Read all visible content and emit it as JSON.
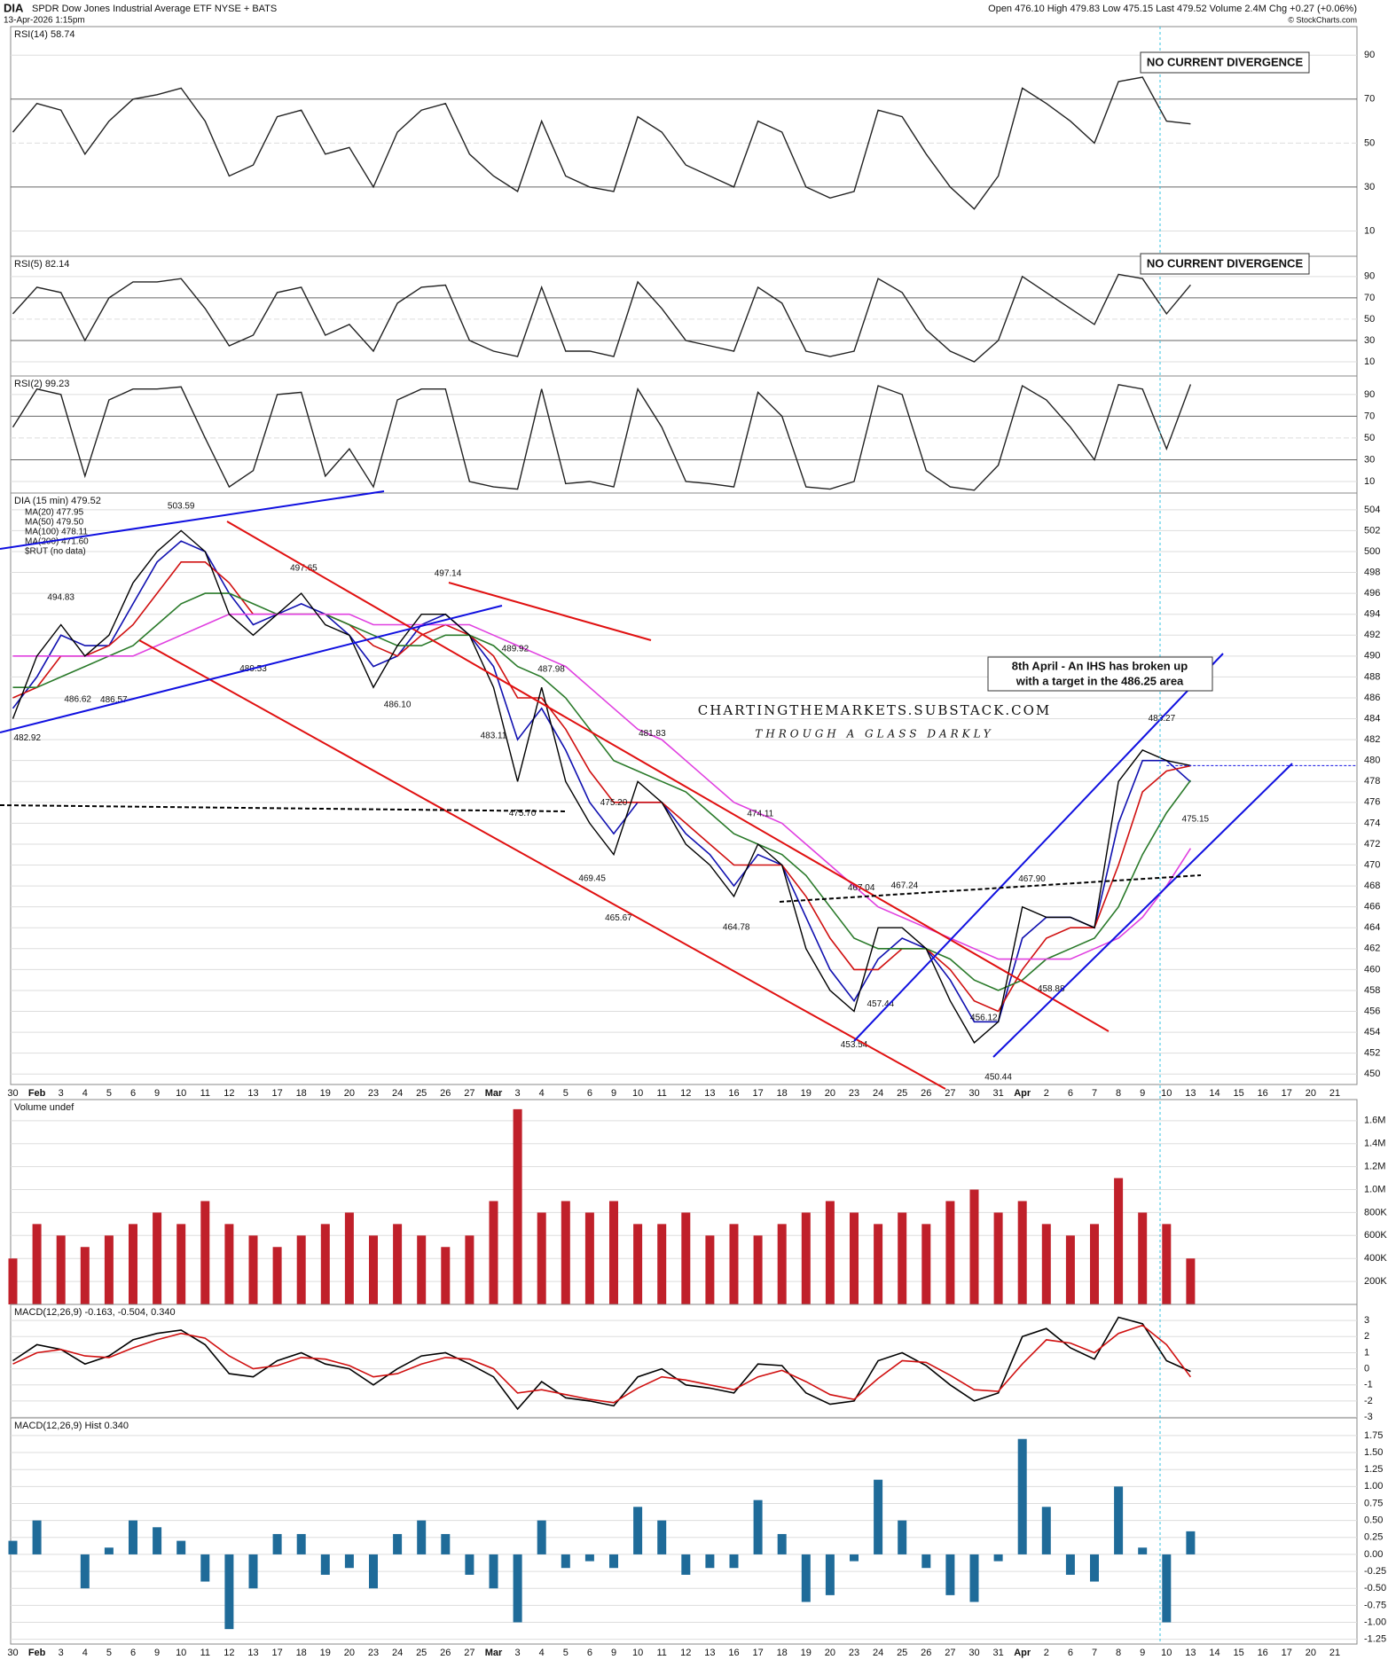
{
  "header": {
    "symbol": "DIA",
    "name": "SPDR Dow Jones Industrial Average ETF NYSE + BATS",
    "date": "13-Apr-2026 1:15pm",
    "quote": "Open 476.10  High 479.83  Low 475.15  Last 479.52  Volume 2.4M  Chg +0.27 (+0.06%)",
    "copyright": "© StockCharts.com"
  },
  "annotations": {
    "divergence_rsi14": "NO CURRENT DIVERGENCE",
    "divergence_rsi5": "NO CURRENT DIVERGENCE",
    "ihs_line1": "8th April - An IHS has broken up",
    "ihs_line2": "with a target in the 486.25 area",
    "watermark": "CHARTINGTHEMARKETS.SUBSTACK.COM",
    "watermark_sub": "THROUGH A GLASS DARKLY"
  },
  "chart_data": [
    {
      "type": "line",
      "title": "RSI(14) 58.74",
      "color": "#222222",
      "ylim": [
        -1.5,
        103
      ],
      "yticks": [
        10,
        30,
        50,
        70,
        90
      ],
      "values": [
        55,
        68,
        65,
        45,
        60,
        70,
        72,
        75,
        60,
        35,
        40,
        62,
        65,
        45,
        48,
        30,
        55,
        65,
        68,
        45,
        35,
        28,
        60,
        35,
        30,
        28,
        62,
        55,
        40,
        35,
        30,
        60,
        55,
        30,
        25,
        28,
        65,
        62,
        45,
        30,
        20,
        35,
        75,
        68,
        60,
        50,
        78,
        80,
        60,
        58.74,
        null,
        null,
        null,
        null,
        null,
        null
      ]
    },
    {
      "type": "line",
      "title": "RSI(5) 82.14",
      "color": "#222222",
      "ylim": [
        -3.3,
        109
      ],
      "yticks": [
        10,
        30,
        50,
        70,
        90
      ],
      "values": [
        55,
        80,
        75,
        30,
        70,
        85,
        85,
        88,
        60,
        25,
        35,
        75,
        80,
        35,
        45,
        20,
        65,
        80,
        82,
        30,
        20,
        15,
        80,
        20,
        20,
        15,
        85,
        60,
        30,
        25,
        20,
        80,
        65,
        20,
        15,
        20,
        88,
        75,
        40,
        20,
        10,
        30,
        90,
        75,
        60,
        45,
        92,
        88,
        55,
        82.14,
        null,
        null,
        null,
        null,
        null,
        null
      ]
    },
    {
      "type": "line",
      "title": "RSI(2) 99.23",
      "color": "#222222",
      "ylim": [
        -0.6,
        107
      ],
      "yticks": [
        10,
        30,
        50,
        70,
        90
      ],
      "values": [
        60,
        95,
        90,
        15,
        85,
        95,
        95,
        97,
        50,
        5,
        20,
        90,
        92,
        15,
        40,
        5,
        85,
        95,
        95,
        10,
        5,
        3,
        95,
        8,
        10,
        5,
        95,
        60,
        10,
        8,
        5,
        92,
        70,
        5,
        3,
        10,
        98,
        90,
        20,
        5,
        2,
        25,
        98,
        85,
        60,
        30,
        99,
        95,
        40,
        99.23,
        null,
        null,
        null,
        null,
        null,
        null
      ]
    },
    {
      "type": "line",
      "title": "DIA (15 min) 479.52",
      "color": "#000000",
      "ylim": [
        449,
        505.6
      ],
      "yticks": [
        450,
        452,
        454,
        456,
        458,
        460,
        462,
        464,
        466,
        468,
        470,
        472,
        474,
        476,
        478,
        480,
        482,
        484,
        486,
        488,
        490,
        492,
        494,
        496,
        498,
        500,
        502,
        504
      ],
      "categories": [
        "30",
        "Feb",
        "3",
        "4",
        "5",
        "6",
        "9",
        "10",
        "11",
        "12",
        "13",
        "17",
        "18",
        "19",
        "20",
        "23",
        "24",
        "25",
        "26",
        "27",
        "Mar",
        "3",
        "4",
        "5",
        "6",
        "9",
        "10",
        "11",
        "12",
        "13",
        "16",
        "17",
        "18",
        "19",
        "20",
        "23",
        "24",
        "25",
        "26",
        "27",
        "30",
        "31",
        "Apr",
        "2",
        "6",
        "7",
        "8",
        "9",
        "10",
        "13",
        "14",
        "15",
        "16",
        "17",
        "20",
        "21"
      ],
      "values": [
        484,
        490,
        493,
        490,
        492,
        497,
        500,
        502,
        500,
        494,
        492,
        494,
        496,
        493,
        492,
        487,
        491,
        494,
        494,
        492,
        487,
        478,
        487,
        478,
        474,
        471,
        478,
        476,
        472,
        470,
        467,
        472,
        470,
        462,
        458,
        456,
        464,
        464,
        462,
        457,
        453,
        455,
        466,
        465,
        465,
        464,
        478,
        481,
        480,
        479.52,
        null,
        null,
        null,
        null,
        null,
        null
      ],
      "series": [
        {
          "name": "MA(20) 477.95",
          "color": "#1010b0",
          "values": [
            485,
            488,
            492,
            491,
            491,
            495,
            499,
            501,
            500,
            496,
            493,
            494,
            495,
            494,
            492,
            489,
            490,
            493,
            494,
            492,
            489,
            482,
            485,
            481,
            476,
            473,
            476,
            476,
            473,
            471,
            468,
            471,
            470,
            465,
            460,
            457,
            461,
            463,
            462,
            459,
            455,
            455,
            463,
            465,
            465,
            464,
            474,
            480,
            480,
            477.95,
            null,
            null,
            null,
            null,
            null,
            null
          ]
        },
        {
          "name": "MA(50) 479.50",
          "color": "#d01010",
          "values": [
            486,
            487,
            490,
            490,
            491,
            493,
            496,
            499,
            499,
            497,
            494,
            494,
            494,
            494,
            493,
            491,
            490,
            492,
            493,
            492,
            490,
            486,
            486,
            483,
            479,
            476,
            476,
            476,
            474,
            472,
            470,
            470,
            470,
            467,
            463,
            460,
            460,
            462,
            462,
            460,
            457,
            456,
            460,
            463,
            464,
            464,
            470,
            477,
            479,
            479.5,
            null,
            null,
            null,
            null,
            null,
            null
          ]
        },
        {
          "name": "MA(100) 478.11",
          "color": "#2a7a2a",
          "values": [
            487,
            487,
            488,
            489,
            490,
            491,
            493,
            495,
            496,
            496,
            495,
            494,
            494,
            494,
            493,
            492,
            491,
            491,
            492,
            492,
            491,
            489,
            488,
            486,
            483,
            480,
            479,
            478,
            477,
            475,
            473,
            472,
            471,
            469,
            466,
            463,
            462,
            462,
            462,
            461,
            459,
            458,
            459,
            461,
            462,
            463,
            466,
            471,
            475,
            478.11,
            null,
            null,
            null,
            null,
            null,
            null
          ]
        },
        {
          "name": "MA(200) 471.60",
          "color": "#e040e0",
          "values": [
            490,
            490,
            490,
            490,
            490,
            490,
            491,
            492,
            493,
            494,
            494,
            494,
            494,
            494,
            494,
            493,
            493,
            493,
            493,
            493,
            492,
            491,
            490,
            489,
            487,
            485,
            483,
            482,
            480,
            478,
            476,
            475,
            474,
            472,
            470,
            468,
            466,
            465,
            464,
            463,
            462,
            461,
            461,
            461,
            461,
            462,
            463,
            465,
            468,
            471.6,
            null,
            null,
            null,
            null,
            null,
            null
          ]
        }
      ],
      "legend_note": "$RUT (no data)",
      "price_labels": [
        "503.59",
        "497.65",
        "497.14",
        "494.83",
        "486.62",
        "486.57",
        "482.92",
        "489.53",
        "486.10",
        "489.92",
        "487.98",
        "483.11",
        "481.83",
        "475.70",
        "475.20",
        "469.45",
        "465.67",
        "474.11",
        "464.78",
        "467.04",
        "467.24",
        "457.44",
        "453.54",
        "456.12",
        "450.44",
        "467.90",
        "458.88",
        "483.27",
        "475.15"
      ]
    },
    {
      "type": "bar",
      "title": "Volume undef",
      "color": "#c0202a",
      "ylim": [
        0,
        1784000
      ],
      "yticks": [
        {
          "value": 200000,
          "label": "200K"
        },
        {
          "value": 400000,
          "label": "400K"
        },
        {
          "value": 600000,
          "label": "600K"
        },
        {
          "value": 800000,
          "label": "800K"
        },
        {
          "value": 1000000,
          "label": "1.0M"
        },
        {
          "value": 1200000,
          "label": "1.2M"
        },
        {
          "value": 1400000,
          "label": "1.4M"
        },
        {
          "value": 1600000,
          "label": "1.6M"
        }
      ],
      "values": [
        400000,
        700000,
        600000,
        500000,
        600000,
        700000,
        800000,
        700000,
        900000,
        700000,
        600000,
        500000,
        600000,
        700000,
        800000,
        600000,
        700000,
        600000,
        500000,
        600000,
        900000,
        1700000,
        800000,
        900000,
        800000,
        900000,
        700000,
        700000,
        800000,
        600000,
        700000,
        600000,
        700000,
        800000,
        900000,
        800000,
        700000,
        800000,
        700000,
        900000,
        1000000,
        800000,
        900000,
        700000,
        600000,
        700000,
        1100000,
        800000,
        700000,
        400000,
        null,
        null,
        null,
        null,
        null,
        null
      ]
    },
    {
      "type": "line",
      "title": "MACD(12,26,9) -0.163, -0.504, 0.340",
      "ylim": [
        -3.05,
        4
      ],
      "yticks": [
        -3,
        -2,
        -1,
        0,
        1,
        2,
        3
      ],
      "series": [
        {
          "name": "MACD",
          "color": "#000000",
          "values": [
            0.5,
            1.5,
            1.2,
            0.3,
            0.8,
            1.8,
            2.2,
            2.4,
            1.5,
            -0.3,
            -0.5,
            0.5,
            1,
            0.3,
            0,
            -1,
            0,
            0.8,
            1,
            0.3,
            -0.5,
            -2.5,
            -0.8,
            -1.8,
            -2,
            -2.3,
            -0.5,
            0,
            -1,
            -1.2,
            -1.5,
            0.3,
            0.2,
            -1.5,
            -2.2,
            -2,
            0.5,
            1,
            0.2,
            -1,
            -2,
            -1.5,
            2,
            2.5,
            1.3,
            0.6,
            3.2,
            2.8,
            0.5,
            -0.163,
            null,
            null,
            null,
            null,
            null,
            null
          ]
        },
        {
          "name": "Signal",
          "color": "#d01010",
          "values": [
            0.3,
            1,
            1.2,
            0.8,
            0.7,
            1.3,
            1.8,
            2.2,
            1.9,
            0.8,
            0,
            0.2,
            0.7,
            0.6,
            0.2,
            -0.5,
            -0.3,
            0.3,
            0.7,
            0.6,
            0,
            -1.5,
            -1.3,
            -1.6,
            -1.9,
            -2.1,
            -1.2,
            -0.5,
            -0.7,
            -1,
            -1.3,
            -0.5,
            -0.1,
            -0.8,
            -1.6,
            -1.9,
            -0.6,
            0.5,
            0.4,
            -0.4,
            -1.3,
            -1.4,
            0.3,
            1.8,
            1.6,
            1,
            2.2,
            2.7,
            1.5,
            -0.504,
            null,
            null,
            null,
            null,
            null,
            null
          ]
        }
      ]
    },
    {
      "type": "bar",
      "title": "MACD(12,26,9) Hist 0.340",
      "color": "#1f6b99",
      "ylim": [
        -1.32,
        2.01
      ],
      "yticks": [
        -1.25,
        {
          "value": -1,
          "label": "-1.00"
        },
        -0.75,
        {
          "value": -0.5,
          "label": "-0.50"
        },
        -0.25,
        {
          "value": 0,
          "label": "0.00"
        },
        0.25,
        {
          "value": 0.5,
          "label": "0.50"
        },
        0.75,
        {
          "value": 1,
          "label": "1.00"
        },
        1.25,
        {
          "value": 1.5,
          "label": "1.50"
        },
        1.75
      ],
      "categories": [
        "30",
        "Feb",
        "3",
        "4",
        "5",
        "6",
        "9",
        "10",
        "11",
        "12",
        "13",
        "17",
        "18",
        "19",
        "20",
        "23",
        "24",
        "25",
        "26",
        "27",
        "Mar",
        "3",
        "4",
        "5",
        "6",
        "9",
        "10",
        "11",
        "12",
        "13",
        "16",
        "17",
        "18",
        "19",
        "20",
        "23",
        "24",
        "25",
        "26",
        "27",
        "30",
        "31",
        "Apr",
        "2",
        "6",
        "7",
        "8",
        "9",
        "10",
        "13",
        "14",
        "15",
        "16",
        "17",
        "20",
        "21"
      ],
      "values": [
        0.2,
        0.5,
        0,
        -0.5,
        0.1,
        0.5,
        0.4,
        0.2,
        -0.4,
        -1.1,
        -0.5,
        0.3,
        0.3,
        -0.3,
        -0.2,
        -0.5,
        0.3,
        0.5,
        0.3,
        -0.3,
        -0.5,
        -1,
        0.5,
        -0.2,
        -0.1,
        -0.2,
        0.7,
        0.5,
        -0.3,
        -0.2,
        -0.2,
        0.8,
        0.3,
        -0.7,
        -0.6,
        -0.1,
        1.1,
        0.5,
        -0.2,
        -0.6,
        -0.7,
        -0.1,
        1.7,
        0.7,
        -0.3,
        -0.4,
        1,
        0.1,
        -1,
        0.34,
        null,
        null,
        null,
        null,
        null,
        null
      ]
    }
  ]
}
